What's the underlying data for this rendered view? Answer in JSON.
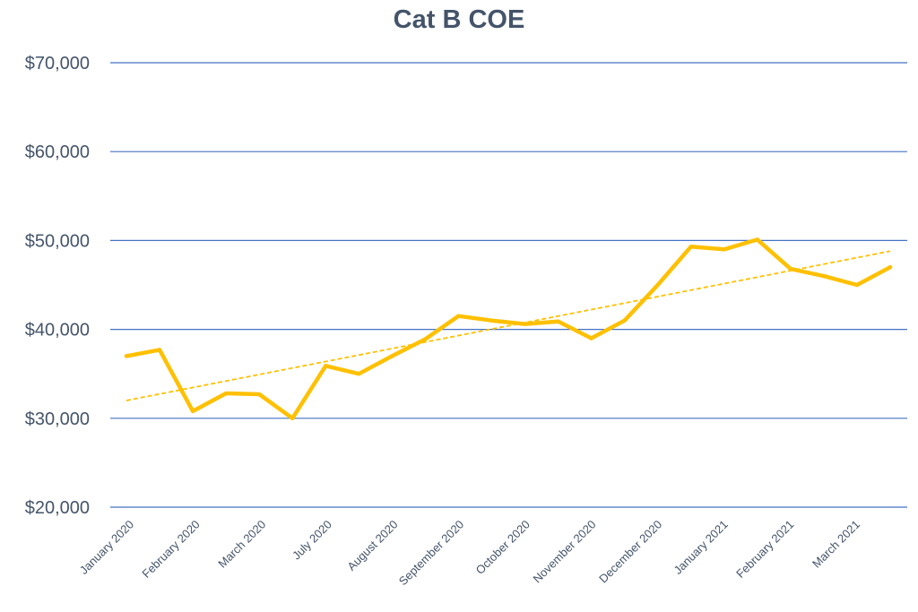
{
  "chart_data": {
    "type": "line",
    "title": "Cat B COE",
    "xlabel": "",
    "ylabel": "",
    "ylim": [
      20000,
      70000
    ],
    "yticks": [
      20000,
      30000,
      40000,
      50000,
      60000,
      70000
    ],
    "ytick_labels": [
      "$20,000",
      "$30,000",
      "$40,000",
      "$50,000",
      "$60,000",
      "$70,000"
    ],
    "grid": true,
    "x_tick_labels": [
      "January 2020",
      "February 2020",
      "March 2020",
      "July 2020",
      "August 2020",
      "September 2020",
      "October 2020",
      "November 2020",
      "December 2020",
      "January 2021",
      "February 2021",
      "March 2021"
    ],
    "series": [
      {
        "name": "Cat B COE",
        "values": [
          37000,
          37700,
          30800,
          32800,
          32700,
          30000,
          35900,
          35000,
          37000,
          38900,
          41500,
          41000,
          40600,
          40900,
          39000,
          41000,
          45000,
          49300,
          49000,
          50100,
          46800,
          46000,
          45000,
          47000
        ]
      }
    ],
    "trendline": {
      "type": "linear",
      "start": 32000,
      "end": 48800
    },
    "colors": {
      "line": "#ffc000",
      "grid": "#4472c4",
      "text": "#44546a"
    }
  }
}
